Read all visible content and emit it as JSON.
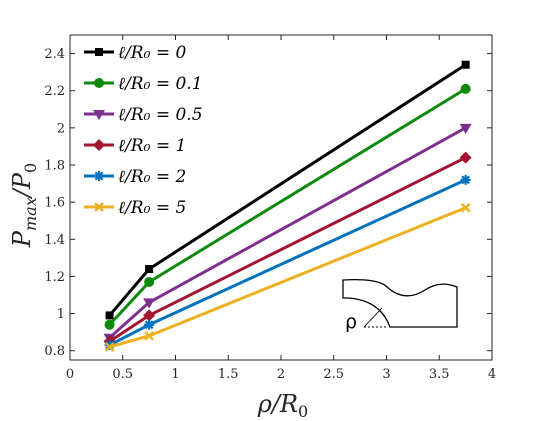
{
  "chart_data": {
    "type": "line",
    "xlabel": "ρ/R₀",
    "ylabel": "P_max/P₀",
    "xlim": [
      0,
      4
    ],
    "ylim": [
      0.75,
      2.5
    ],
    "xticks": [
      "0",
      "0.5",
      "1",
      "1.5",
      "2",
      "2.5",
      "3",
      "3.5",
      "4"
    ],
    "yticks": [
      "0.8",
      "1",
      "1.2",
      "1.4",
      "1.6",
      "1.8",
      "2",
      "2.2",
      "2.4"
    ],
    "legend_position": "top-left",
    "grid": false,
    "x": [
      0.375,
      0.75,
      3.75
    ],
    "series": [
      {
        "name": "ℓ/R₀ = 0",
        "values": [
          0.99,
          1.24,
          2.34
        ],
        "color": "#000000",
        "marker": "square"
      },
      {
        "name": "ℓ/R₀ = 0.1",
        "values": [
          0.94,
          1.17,
          2.21
        ],
        "color": "#0b8a0b",
        "marker": "circle"
      },
      {
        "name": "ℓ/R₀ = 0.5",
        "values": [
          0.87,
          1.06,
          2.0
        ],
        "color": "#7e2f8e",
        "marker": "triangle-down"
      },
      {
        "name": "ℓ/R₀ = 1",
        "values": [
          0.85,
          0.99,
          1.84
        ],
        "color": "#a2142f",
        "marker": "diamond"
      },
      {
        "name": "ℓ/R₀ = 2",
        "values": [
          0.83,
          0.94,
          1.72
        ],
        "color": "#0072bd",
        "marker": "asterisk"
      },
      {
        "name": "ℓ/R₀ = 5",
        "values": [
          0.82,
          0.88,
          1.57
        ],
        "color": "#edb120",
        "marker": "x"
      }
    ]
  },
  "inset": {
    "label": "ρ"
  }
}
